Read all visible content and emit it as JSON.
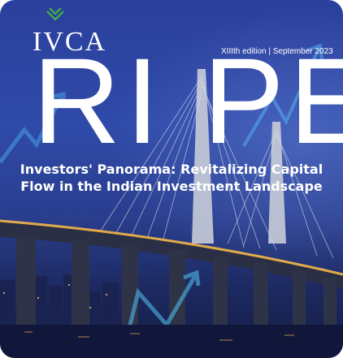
{
  "brand": {
    "logo_text": "IVCA",
    "masthead": "RI PE"
  },
  "edition": "XIIIth edition | September 2023",
  "headline": {
    "line1": "Investors' Panorama: Revitalizing Capital",
    "line2": "Flow in the Indian Investment Landscape"
  },
  "icons": {
    "logo_mark": "leaf-chevron-icon"
  },
  "colors": {
    "logo_mark": "#3fae49",
    "sky": "#2f4aa8",
    "text": "#ffffff"
  }
}
